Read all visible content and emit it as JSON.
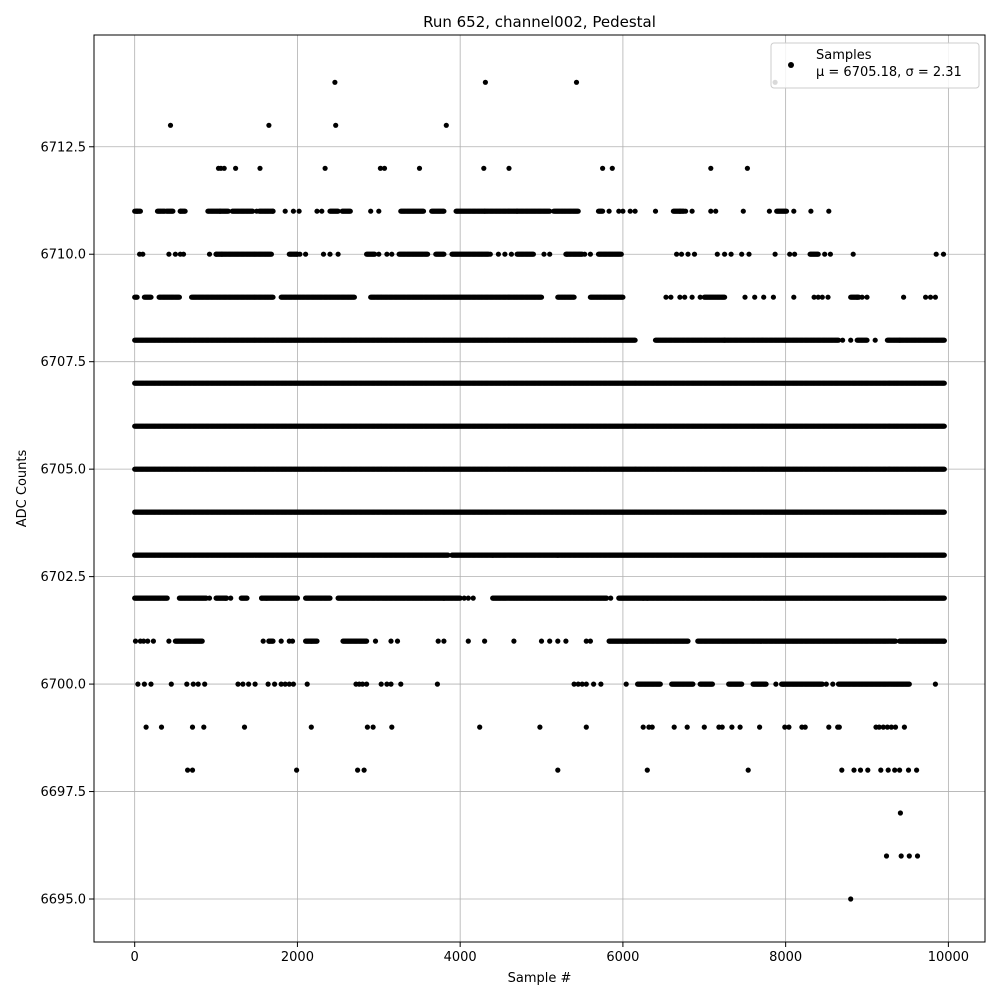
{
  "chart_data": {
    "type": "scatter",
    "title": "Run 652, channel002, Pedestal",
    "xlabel": "Sample #",
    "ylabel": "ADC Counts",
    "xlim": [
      -500,
      10450
    ],
    "ylim": [
      6694,
      6715.1
    ],
    "x_ticks": [
      0,
      2000,
      4000,
      6000,
      8000,
      10000
    ],
    "y_ticks": [
      6695.0,
      6697.5,
      6700.0,
      6702.5,
      6705.0,
      6707.5,
      6710.0,
      6712.5
    ],
    "x_tick_labels": [
      "0",
      "2000",
      "4000",
      "6000",
      "8000",
      "10000"
    ],
    "y_tick_labels": [
      "6695.0",
      "6697.5",
      "6700.0",
      "6702.5",
      "6705.0",
      "6707.5",
      "6710.0",
      "6712.5"
    ],
    "grid": true,
    "legend_position": "top-right",
    "series": [
      {
        "name": "Samples",
        "marker_color": "#000000",
        "levels": [
          {
            "y": 6695,
            "x": [
              8800
            ]
          },
          {
            "y": 6696,
            "x": [
              9240,
              9420,
              9520,
              9620
            ]
          },
          {
            "y": 6697,
            "x": [
              9410
            ]
          },
          {
            "y": 6698,
            "x": [
              650,
              710,
              1990,
              2740,
              2820,
              5200,
              6300,
              7540,
              8690,
              8840,
              8920,
              9010,
              9170,
              9260,
              9340,
              9400,
              9510,
              9610
            ]
          },
          {
            "y": 6713,
            "x": [
              440,
              1650,
              2470,
              3830
            ]
          },
          {
            "y": 6714,
            "x": [
              2460,
              4310,
              5430,
              7870
            ]
          },
          {
            "y": 6699,
            "x": [
              140,
              330,
              710,
              850,
              1350,
              2170,
              2860,
              2930,
              3160,
              4240,
              4980,
              5550,
              6250,
              6320,
              6360,
              6630,
              6790,
              7000,
              7180,
              7220,
              7340,
              7440,
              7680,
              7990,
              8040,
              8200,
              8240,
              8530,
              8640,
              8660,
              9110,
              9150,
              9200,
              9250,
              9300,
              9350,
              9460
            ],
            "ranges": []
          },
          {
            "y": 6700,
            "x": [
              40,
              120,
              200,
              450,
              640,
              720,
              780,
              860,
              1270,
              1330,
              1400,
              1480,
              1640,
              1720,
              1800,
              1850,
              1900,
              1950,
              2120,
              2720,
              2760,
              2800,
              2850,
              3030,
              3100,
              3150,
              3270,
              3720,
              5400,
              5450,
              5500,
              5550,
              5640,
              5730,
              6040,
              7880,
              7970,
              8500,
              8580,
              9840
            ],
            "ranges": [
              [
                6180,
                6460
              ],
              [
                6600,
                6860
              ],
              [
                6950,
                7100
              ],
              [
                7300,
                7460
              ],
              [
                7600,
                7760
              ],
              [
                7950,
                8450
              ],
              [
                8650,
                9520
              ]
            ]
          },
          {
            "y": 6701,
            "x": [
              10,
              70,
              110,
              160,
              230,
              420,
              1580,
              1650,
              1800,
              1900,
              1940,
              2170,
              2240,
              2960,
              3150,
              3230,
              3730,
              3800,
              4100,
              4300,
              4660,
              5000,
              5100,
              5200,
              5300,
              5550,
              5600,
              9950
            ],
            "ranges": [
              [
                500,
                830
              ],
              [
                1650,
                1700
              ],
              [
                2100,
                2230
              ],
              [
                2560,
                2850
              ],
              [
                5830,
                6050
              ],
              [
                6050,
                6800
              ],
              [
                6920,
                7700
              ],
              [
                7700,
                9350
              ],
              [
                9400,
                9950
              ]
            ]
          },
          {
            "y": 6702,
            "x": [
              920,
              1120,
              1180,
              1560,
              1620,
              4050,
              4100,
              4160,
              5850,
              6250,
              6300
            ],
            "ranges": [
              [
                0,
                400
              ],
              [
                550,
                880
              ],
              [
                1000,
                1130
              ],
              [
                1310,
                1380
              ],
              [
                1560,
                2000
              ],
              [
                2100,
                2400
              ],
              [
                2500,
                3800
              ],
              [
                3800,
                4000
              ],
              [
                4400,
                5800
              ],
              [
                5950,
                9950
              ]
            ]
          },
          {
            "y": 6703,
            "ranges": [
              [
                0,
                3850
              ],
              [
                3900,
                4400
              ],
              [
                4400,
                5200
              ],
              [
                5200,
                9950
              ]
            ]
          },
          {
            "y": 6704,
            "ranges": [
              [
                0,
                9950
              ]
            ]
          },
          {
            "y": 6705,
            "ranges": [
              [
                0,
                9950
              ]
            ]
          },
          {
            "y": 6706,
            "ranges": [
              [
                0,
                9950
              ]
            ]
          },
          {
            "y": 6707,
            "ranges": [
              [
                0,
                9950
              ]
            ]
          },
          {
            "y": 6708,
            "ranges": [
              [
                0,
                6150
              ],
              [
                6400,
                7250
              ],
              [
                7250,
                8000
              ],
              [
                8000,
                8650
              ],
              [
                8880,
                9000
              ],
              [
                9250,
                9950
              ]
            ],
            "x": [
              8700,
              8800,
              9100,
              9400
            ]
          },
          {
            "y": 6709,
            "x": [
              6530,
              6590,
              6700,
              6760,
              6850,
              6950,
              7500,
              7620,
              7730,
              7850,
              8100,
              8350,
              8400,
              8450,
              8520,
              8880,
              8940,
              9000,
              9450,
              9720,
              9780,
              9840
            ],
            "ranges": [
              [
                0,
                30
              ],
              [
                120,
                200
              ],
              [
                300,
                550
              ],
              [
                700,
                1700
              ],
              [
                1800,
                2700
              ],
              [
                2900,
                5000
              ],
              [
                5200,
                5400
              ],
              [
                5600,
                6000
              ],
              [
                7000,
                7250
              ],
              [
                8800,
                8900
              ]
            ]
          },
          {
            "y": 6710,
            "x": [
              60,
              100,
              420,
              500,
              560,
              600,
              920,
              1000,
              1070,
              2000,
              2030,
              2100,
              2320,
              2400,
              2500,
              3000,
              3100,
              3160,
              4370,
              4470,
              4550,
              4630,
              5030,
              5100,
              5310,
              5530,
              5600,
              6660,
              6720,
              6800,
              6880,
              7160,
              7250,
              7330,
              7460,
              7550,
              7870,
              8050,
              8110,
              8480,
              8550,
              8830,
              9850,
              9940
            ],
            "ranges": [
              [
                1000,
                1680
              ],
              [
                1900,
                2000
              ],
              [
                2850,
                2950
              ],
              [
                3250,
                3600
              ],
              [
                3700,
                3800
              ],
              [
                3900,
                4350
              ],
              [
                4700,
                4900
              ],
              [
                5300,
                5500
              ],
              [
                5700,
                5980
              ],
              [
                8300,
                8400
              ]
            ]
          },
          {
            "y": 6711,
            "x": [
              30,
              70,
              390,
              560,
              620,
              1050,
              1500,
              1700,
              1850,
              1950,
              2020,
              2240,
              2300,
              2900,
              3000,
              5830,
              5950,
              6000,
              6090,
              6150,
              6400,
              6700,
              6770,
              6850,
              7080,
              7140,
              7480,
              7800,
              8100,
              8310,
              8530
            ],
            "ranges": [
              [
                0,
                60
              ],
              [
                280,
                370
              ],
              [
                400,
                470
              ],
              [
                560,
                610
              ],
              [
                900,
                1150
              ],
              [
                1200,
                1450
              ],
              [
                1530,
                1700
              ],
              [
                2400,
                2500
              ],
              [
                2550,
                2650
              ],
              [
                3270,
                3550
              ],
              [
                3650,
                3800
              ],
              [
                3950,
                4300
              ],
              [
                4300,
                4700
              ],
              [
                4700,
                5100
              ],
              [
                5150,
                5450
              ],
              [
                5700,
                5750
              ],
              [
                6620,
                6750
              ],
              [
                7890,
                8010
              ]
            ]
          },
          {
            "y": 6712,
            "x": [
              1030,
              1060,
              1100,
              1240,
              1540,
              2340,
              3020,
              3070,
              3500,
              4290,
              4600,
              5750,
              5870,
              7080,
              7530
            ]
          }
        ]
      }
    ],
    "legend": {
      "entry_label": "Samples",
      "stats_label": "μ = 6705.18, σ = 2.31"
    }
  }
}
